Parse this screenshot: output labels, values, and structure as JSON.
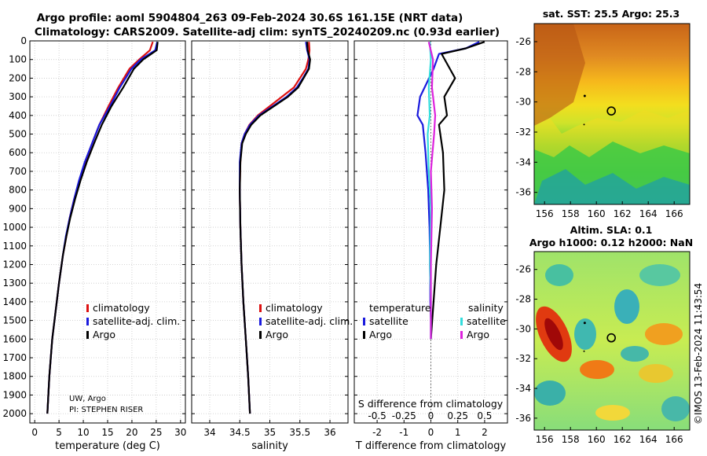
{
  "header": {
    "title_line1": "Argo profile: aoml 5904804_263 09-Feb-2024 30.6S 161.15E (NRT data)",
    "title_line2": "Climatology: CARS2009. Satellite-adj clim: synTS_20240209.nc (0.93d earlier)"
  },
  "credits": {
    "line1": "UW, Argo",
    "line2": "PI: STEPHEN RISER"
  },
  "watermark": "©IMOS 13-Feb-2024 11:43:54",
  "colors": {
    "climatology": "#dd1111",
    "satellite": "#1a1add",
    "argo": "#000000",
    "sal_sat": "#33dddd",
    "sal_argo": "#dd22dd"
  },
  "chart_data": [
    {
      "id": "temperature-profile",
      "type": "line",
      "xlabel": "temperature (deg C)",
      "ylabel": "",
      "xlim": [
        -1,
        31
      ],
      "ylim": [
        2050,
        0
      ],
      "xticks": [
        "0",
        "5",
        "10",
        "15",
        "20",
        "25",
        "30"
      ],
      "yticks": [
        "0",
        "100",
        "200",
        "300",
        "400",
        "500",
        "600",
        "700",
        "800",
        "900",
        "1000",
        "1100",
        "1200",
        "1300",
        "1400",
        "1500",
        "1600",
        "1700",
        "1800",
        "1900",
        "2000"
      ],
      "legend": [
        "climatology",
        "satellite-adj. clim.",
        "Argo"
      ],
      "series": [
        {
          "name": "climatology",
          "x": [
            24.3,
            23.7,
            21.5,
            19.5,
            17.2,
            15.2,
            13.3,
            11.8,
            10.4,
            9.2,
            8.1,
            7.2,
            6.5,
            5.8,
            5.0,
            4.3,
            3.6,
            3.0,
            2.6
          ],
          "y": [
            5,
            50,
            100,
            150,
            250,
            350,
            450,
            550,
            650,
            750,
            850,
            950,
            1050,
            1150,
            1300,
            1450,
            1600,
            1800,
            2000
          ]
        },
        {
          "name": "satellite-adj. clim.",
          "x": [
            25.2,
            24.8,
            21.8,
            19.9,
            17.5,
            15.5,
            13.3,
            11.8,
            10.3,
            9.1,
            8.1,
            7.2,
            6.4,
            5.8,
            5.0,
            4.3,
            3.6,
            3.0,
            2.6
          ],
          "y": [
            5,
            50,
            100,
            150,
            250,
            350,
            450,
            550,
            650,
            750,
            850,
            950,
            1050,
            1150,
            1300,
            1450,
            1600,
            1800,
            2000
          ]
        },
        {
          "name": "Argo",
          "x": [
            25.3,
            25.1,
            22.3,
            20.4,
            18.2,
            15.8,
            13.8,
            12.2,
            10.7,
            9.4,
            8.3,
            7.3,
            6.5,
            5.8,
            5.0,
            4.3,
            3.6,
            3.0,
            2.6
          ],
          "y": [
            5,
            50,
            100,
            150,
            250,
            350,
            450,
            550,
            650,
            750,
            850,
            950,
            1050,
            1150,
            1300,
            1450,
            1600,
            1800,
            2000
          ]
        }
      ]
    },
    {
      "id": "salinity-profile",
      "type": "line",
      "xlabel": "salinity",
      "xlim": [
        33.7,
        36.3
      ],
      "ylim": [
        2050,
        0
      ],
      "xticks": [
        "34",
        "34.5",
        "35",
        "35.5",
        "36"
      ],
      "legend": [
        "climatology",
        "satellite-adj. clim.",
        "Argo"
      ],
      "series": [
        {
          "name": "climatology",
          "x": [
            35.65,
            35.66,
            35.64,
            35.6,
            35.5,
            35.4,
            35.2,
            35.0,
            34.8,
            34.66,
            34.58,
            34.53,
            34.51,
            34.5,
            34.51,
            34.53,
            34.56,
            34.6,
            34.64,
            34.67
          ],
          "y": [
            5,
            50,
            100,
            150,
            200,
            250,
            300,
            350,
            400,
            450,
            500,
            550,
            650,
            800,
            1000,
            1200,
            1400,
            1600,
            1800,
            2000
          ]
        },
        {
          "name": "satellite-adj. clim.",
          "x": [
            35.6,
            35.62,
            35.66,
            35.64,
            35.55,
            35.45,
            35.28,
            35.05,
            34.82,
            34.67,
            34.58,
            34.53,
            34.5,
            34.5,
            34.51,
            34.53,
            34.56,
            34.6,
            34.64,
            34.67
          ],
          "y": [
            5,
            50,
            100,
            150,
            200,
            250,
            300,
            350,
            400,
            450,
            500,
            550,
            650,
            800,
            1000,
            1200,
            1400,
            1600,
            1800,
            2000
          ]
        },
        {
          "name": "Argo",
          "x": [
            35.62,
            35.63,
            35.67,
            35.65,
            35.56,
            35.47,
            35.3,
            35.07,
            34.84,
            34.69,
            34.6,
            34.54,
            34.51,
            34.5,
            34.51,
            34.53,
            34.56,
            34.6,
            34.64,
            34.67
          ],
          "y": [
            5,
            50,
            100,
            150,
            200,
            250,
            300,
            350,
            400,
            450,
            500,
            550,
            650,
            800,
            1000,
            1200,
            1400,
            1600,
            1800,
            2000
          ]
        }
      ]
    },
    {
      "id": "difference-profile",
      "type": "line",
      "xlabel": "T difference from climatology",
      "xlabel_top": "S difference from climatology",
      "xlim": [
        -2.85,
        2.85
      ],
      "ylim": [
        2050,
        0
      ],
      "xticks": [
        "-2",
        "-1",
        "0",
        "1",
        "2"
      ],
      "xticks_top": [
        "-0.5",
        "-0.25",
        "0",
        "0.25",
        "0.5"
      ],
      "legend_temperature_title": "temperature",
      "legend_salinity_title": "salinity",
      "legend_temperature": [
        "satellite",
        "Argo"
      ],
      "legend_salinity": [
        "satellite",
        "Argo"
      ],
      "series": [
        {
          "name": "T satellite",
          "x": [
            1.8,
            1.3,
            0.3,
            0.1,
            -0.4,
            -0.5,
            -0.3,
            -0.2,
            -0.1,
            -0.05,
            -0.03,
            -0.02,
            0,
            0
          ],
          "y": [
            5,
            40,
            70,
            150,
            300,
            400,
            450,
            600,
            800,
            1000,
            1200,
            1400,
            1500,
            1600
          ]
        },
        {
          "name": "T Argo",
          "x": [
            2.0,
            1.3,
            0.4,
            0.9,
            0.5,
            0.6,
            0.3,
            0.45,
            0.5,
            0.35,
            0.2,
            0.1,
            0.05,
            0
          ],
          "y": [
            5,
            40,
            70,
            200,
            300,
            400,
            450,
            600,
            800,
            1000,
            1200,
            1400,
            1500,
            1600
          ]
        },
        {
          "name": "S satellite",
          "x": [
            -0.01,
            0,
            -0.02,
            -0.01,
            -0.03,
            -0.02,
            0,
            -0.01,
            0,
            0
          ],
          "y": [
            5,
            100,
            250,
            400,
            500,
            700,
            900,
            1200,
            1400,
            1600
          ]
        },
        {
          "name": "S Argo",
          "x": [
            -0.02,
            0.02,
            0.01,
            0.04,
            0.03,
            0,
            0.01,
            0,
            0,
            0
          ],
          "y": [
            5,
            100,
            250,
            400,
            500,
            700,
            900,
            1200,
            1400,
            1600
          ]
        }
      ]
    },
    {
      "id": "sst-map",
      "type": "heatmap",
      "title": "sat. SST: 25.5 Argo: 25.3",
      "xticks": [
        "156",
        "158",
        "160",
        "162",
        "164",
        "166"
      ],
      "yticks": [
        "-26",
        "-28",
        "-30",
        "-32",
        "-34",
        "-36"
      ],
      "xlim": [
        155.2,
        167.2
      ],
      "ylim": [
        -36.8,
        -24.8
      ],
      "argo_position": {
        "lon": 161.15,
        "lat": -30.6
      }
    },
    {
      "id": "sla-map",
      "type": "heatmap",
      "title_line1": "Altim. SLA: 0.1",
      "title_line2": "Argo h1000: 0.12 h2000: NaN",
      "xticks": [
        "156",
        "158",
        "160",
        "162",
        "164",
        "166"
      ],
      "yticks": [
        "-26",
        "-28",
        "-30",
        "-32",
        "-34",
        "-36"
      ],
      "xlim": [
        155.2,
        167.2
      ],
      "ylim": [
        -36.8,
        -24.8
      ],
      "argo_position": {
        "lon": 161.15,
        "lat": -30.6
      }
    }
  ]
}
